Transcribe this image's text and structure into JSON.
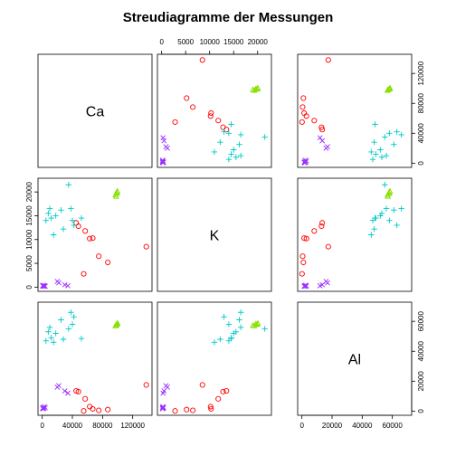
{
  "chart_data": {
    "type": "scatter-matrix",
    "title": "Streudiagramme der Messungen",
    "variables": [
      "Ca",
      "K",
      "Al"
    ],
    "ranges": {
      "Ca": [
        0,
        140000
      ],
      "K": [
        0,
        22000
      ],
      "Al": [
        0,
        70000
      ]
    },
    "ticks": {
      "Ca": [
        0,
        40000,
        80000,
        120000
      ],
      "K": [
        0,
        5000,
        10000,
        15000,
        20000
      ],
      "Al": [
        0,
        20000,
        40000,
        60000
      ]
    },
    "groups": [
      {
        "color": "#ff0000",
        "marker": "circle",
        "points": [
          [
            138000,
            8500,
            17500
          ],
          [
            75000,
            6500,
            500
          ],
          [
            87000,
            5200,
            1000
          ],
          [
            55000,
            2800,
            100
          ],
          [
            57000,
            11800,
            8200
          ],
          [
            45000,
            13500,
            13500
          ],
          [
            48000,
            12800,
            13000
          ],
          [
            63000,
            10200,
            3000
          ],
          [
            67000,
            10300,
            1500
          ]
        ]
      },
      {
        "color": "#00c8c8",
        "marker": "plus",
        "points": [
          [
            5000,
            14000,
            47000
          ],
          [
            8000,
            15500,
            53000
          ],
          [
            10000,
            16500,
            56000
          ],
          [
            12000,
            14500,
            49000
          ],
          [
            15000,
            11000,
            46000
          ],
          [
            18000,
            15000,
            52000
          ],
          [
            25000,
            16200,
            61000
          ],
          [
            28000,
            12200,
            48000
          ],
          [
            35000,
            21500,
            55000
          ],
          [
            38000,
            16500,
            66000
          ],
          [
            40000,
            14000,
            58000
          ],
          [
            42000,
            13000,
            63000
          ],
          [
            52000,
            14500,
            48500
          ]
        ]
      },
      {
        "color": "#88e000",
        "marker": "triangle",
        "points": [
          [
            98000,
            19000,
            57000
          ],
          [
            99000,
            19600,
            58000
          ],
          [
            100000,
            20000,
            58500
          ],
          [
            97000,
            19300,
            56800
          ],
          [
            98500,
            19800,
            57700
          ],
          [
            99500,
            20100,
            58300
          ]
        ]
      },
      {
        "color": "#9b30ff",
        "marker": "x",
        "points": [
          [
            500,
            300,
            2000
          ],
          [
            1000,
            200,
            1500
          ],
          [
            1500,
            400,
            2500
          ],
          [
            2000,
            200,
            1800
          ],
          [
            3000,
            250,
            3000
          ],
          [
            4000,
            200,
            2200
          ],
          [
            22000,
            900,
            17000
          ],
          [
            30000,
            500,
            13500
          ],
          [
            34000,
            300,
            12000
          ],
          [
            20000,
            1200,
            16000
          ]
        ]
      }
    ]
  }
}
